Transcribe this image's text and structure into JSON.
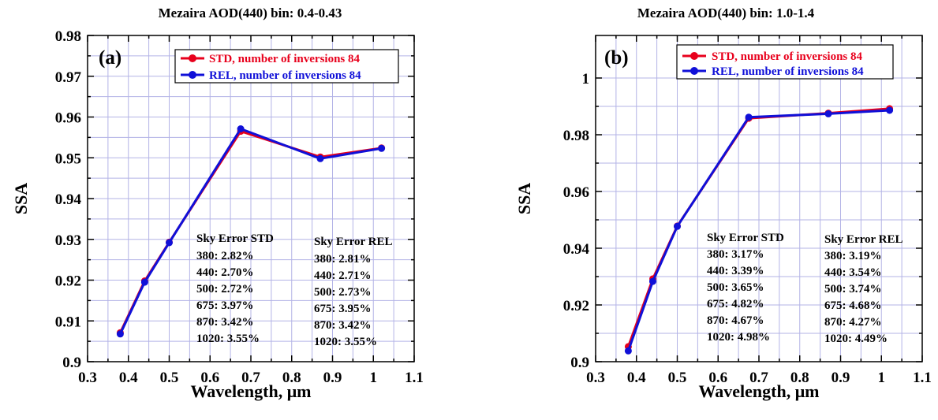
{
  "chart_data": [
    {
      "type": "line",
      "title": "Mezaira AOD(440) bin: 0.4-0.43",
      "panel_label": "(a)",
      "xlabel": "Wavelength, μm",
      "ylabel": "SSA",
      "xlim": [
        0.3,
        1.1
      ],
      "ylim": [
        0.9,
        0.98
      ],
      "xticks": [
        0.3,
        0.4,
        0.5,
        0.6,
        0.7,
        0.8,
        0.9,
        1,
        1.1
      ],
      "xtick_labels": [
        "0.3",
        "0.4",
        "0.5",
        "0.6",
        "0.7",
        "0.8",
        "0.9",
        "1",
        "1.1"
      ],
      "yticks": [
        0.9,
        0.91,
        0.92,
        0.93,
        0.94,
        0.95,
        0.96,
        0.97,
        0.98
      ],
      "ytick_labels": [
        "0.9",
        "0.91",
        "0.92",
        "0.93",
        "0.94",
        "0.95",
        "0.96",
        "0.97",
        "0.98"
      ],
      "grid": true,
      "legend_position": "top-right",
      "series": [
        {
          "name": "STD, number of inversions 84",
          "color": "#e8001c",
          "x": [
            0.38,
            0.44,
            0.5,
            0.675,
            0.87,
            1.02
          ],
          "y": [
            0.9071,
            0.9198,
            0.9293,
            0.9565,
            0.9502,
            0.9524
          ]
        },
        {
          "name": "REL, number of inversions 84",
          "color": "#1010d8",
          "x": [
            0.38,
            0.44,
            0.5,
            0.675,
            0.87,
            1.02
          ],
          "y": [
            0.9068,
            0.9195,
            0.9292,
            0.9571,
            0.9498,
            0.9523
          ]
        }
      ],
      "annotations": [
        {
          "title": "Sky Error STD",
          "lines": [
            "380: 2.82%",
            "440: 2.70%",
            "500: 2.72%",
            "675: 3.97%",
            "870: 3.42%",
            "1020: 3.55%"
          ]
        },
        {
          "title": "Sky Error REL",
          "lines": [
            "380: 2.81%",
            "440: 2.71%",
            "500: 2.73%",
            "675: 3.95%",
            "870: 3.42%",
            "1020: 3.55%"
          ]
        }
      ]
    },
    {
      "type": "line",
      "title": "Mezaira AOD(440) bin: 1.0-1.4",
      "panel_label": "(b)",
      "xlabel": "Wavelength, μm",
      "ylabel": "SSA",
      "xlim": [
        0.3,
        1.1
      ],
      "ylim": [
        0.9,
        1.015
      ],
      "xticks": [
        0.3,
        0.4,
        0.5,
        0.6,
        0.7,
        0.8,
        0.9,
        1,
        1.1
      ],
      "xtick_labels": [
        "0.3",
        "0.4",
        "0.5",
        "0.6",
        "0.7",
        "0.8",
        "0.9",
        "1",
        "1.1"
      ],
      "yticks": [
        0.9,
        0.92,
        0.94,
        0.96,
        0.98,
        1
      ],
      "ytick_labels": [
        "0.9",
        "0.92",
        "0.94",
        "0.96",
        "0.98",
        "1"
      ],
      "grid": true,
      "legend_position": "top-right",
      "series": [
        {
          "name": "STD, number of inversions 84",
          "color": "#e8001c",
          "x": [
            0.38,
            0.44,
            0.5,
            0.675,
            0.87,
            1.02
          ],
          "y": [
            0.9053,
            0.9292,
            0.9478,
            0.9858,
            0.9876,
            0.9892
          ]
        },
        {
          "name": "REL, number of inversions 84",
          "color": "#1010d8",
          "x": [
            0.38,
            0.44,
            0.5,
            0.675,
            0.87,
            1.02
          ],
          "y": [
            0.9038,
            0.9283,
            0.9477,
            0.9862,
            0.9874,
            0.9886
          ]
        }
      ],
      "annotations": [
        {
          "title": "Sky Error STD",
          "lines": [
            "380: 3.17%",
            "440: 3.39%",
            "500: 3.65%",
            "675: 4.82%",
            "870: 4.67%",
            "1020: 4.98%"
          ]
        },
        {
          "title": "Sky Error REL",
          "lines": [
            "380: 3.19%",
            "440: 3.54%",
            "500: 3.74%",
            "675: 4.68%",
            "870: 4.27%",
            "1020: 4.49%"
          ]
        }
      ]
    }
  ]
}
